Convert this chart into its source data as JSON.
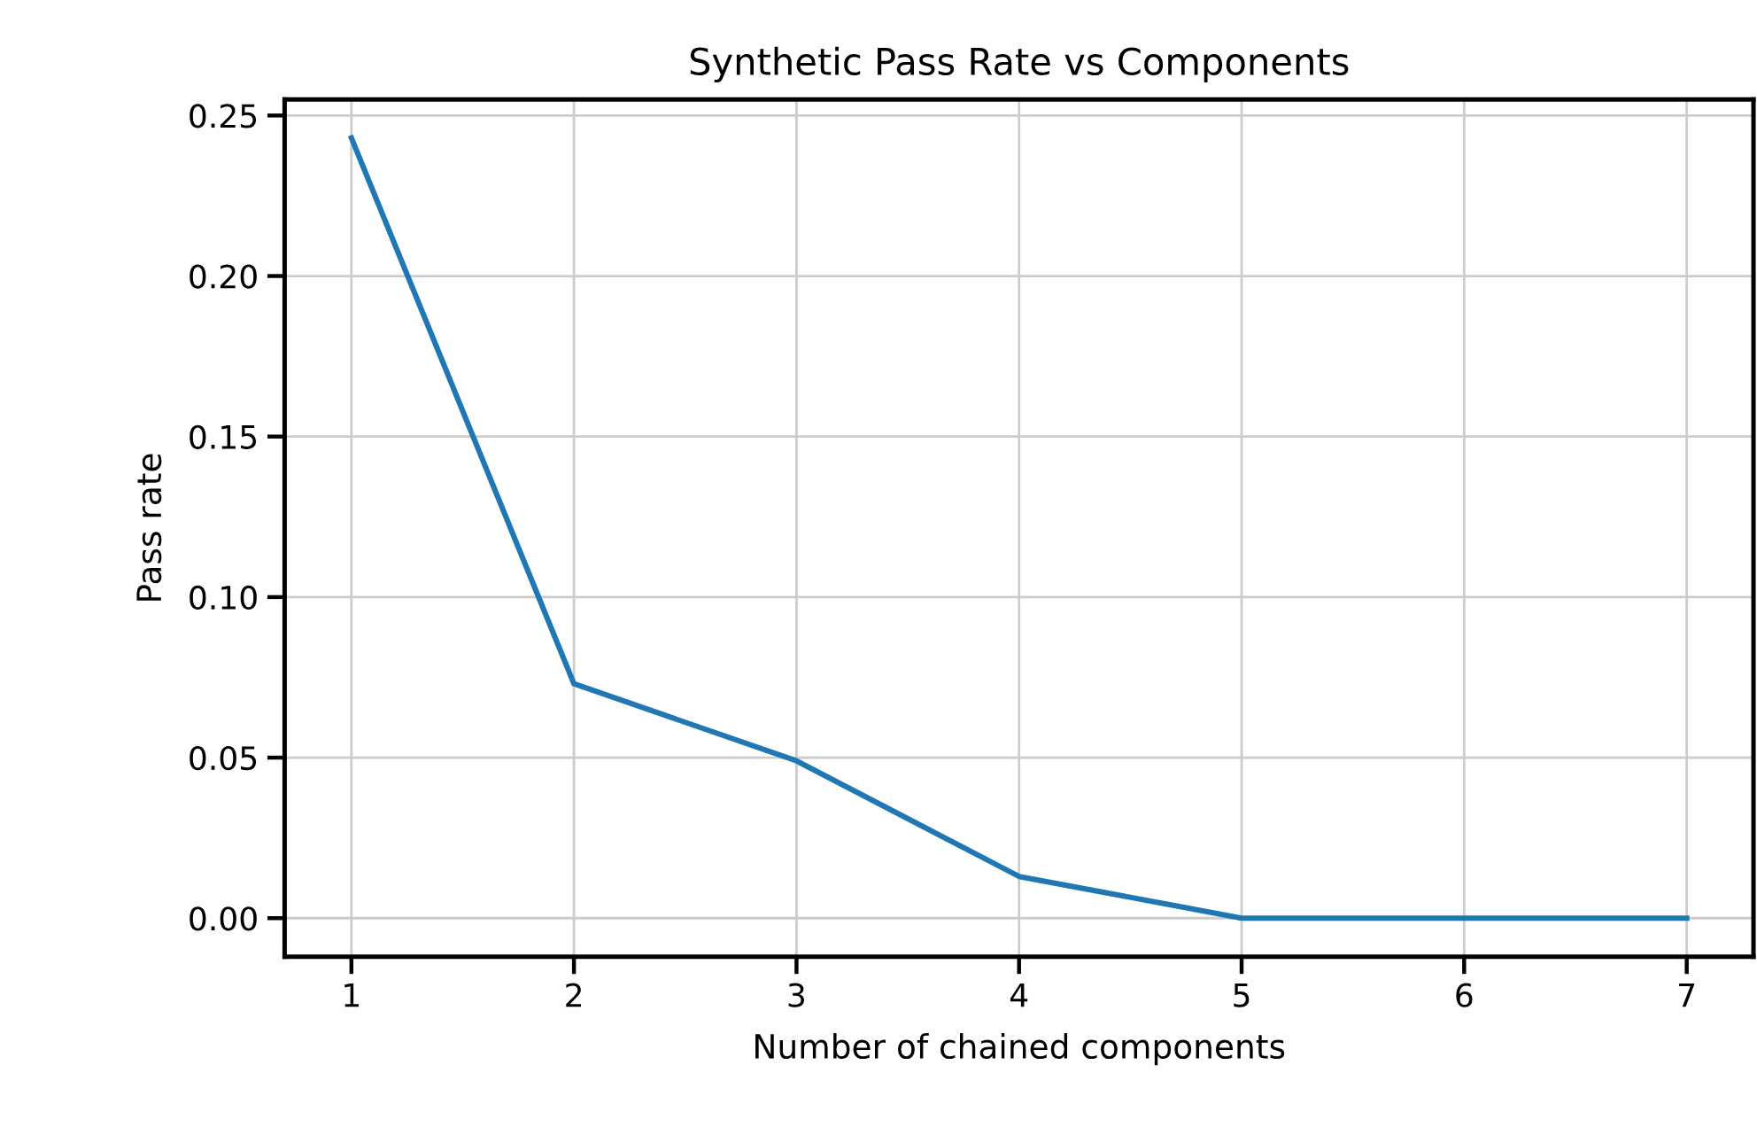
{
  "chart_data": {
    "type": "line",
    "title": "Synthetic Pass Rate vs Components",
    "xlabel": "Number of chained components",
    "ylabel": "Pass rate",
    "x": [
      1,
      2,
      3,
      4,
      5,
      6,
      7
    ],
    "series": [
      {
        "color": "#1f77b4",
        "values": [
          0.243,
          0.073,
          0.049,
          0.013,
          0,
          0,
          0
        ]
      }
    ],
    "xlim": [
      0.7,
      7.3
    ],
    "ylim": [
      -0.012,
      0.255
    ],
    "xticks": [
      1,
      2,
      3,
      4,
      5,
      6,
      7
    ],
    "yticks": [
      {
        "value": 0,
        "label": "0.00"
      },
      {
        "value": 0.05,
        "label": "0.05"
      },
      {
        "value": 0.1,
        "label": "0.10"
      },
      {
        "value": 0.15,
        "label": "0.15"
      },
      {
        "value": 0.2,
        "label": "0.20"
      },
      {
        "value": 0.25,
        "label": "0.25"
      }
    ],
    "grid": true,
    "marker": "none",
    "line_style": "solid"
  }
}
